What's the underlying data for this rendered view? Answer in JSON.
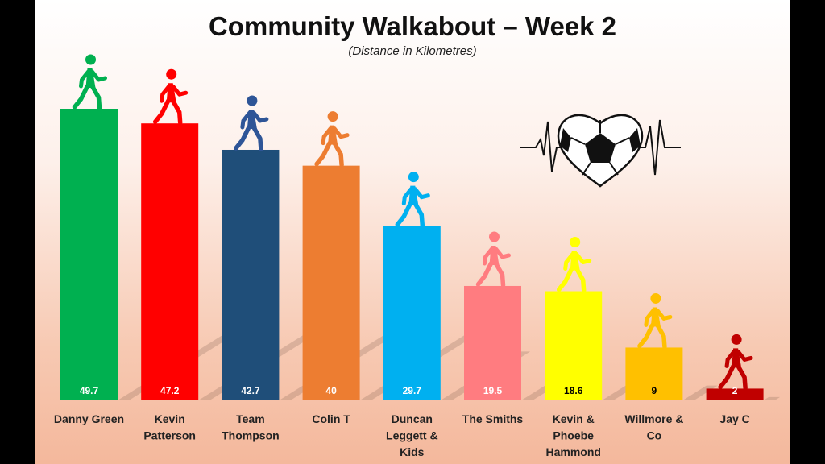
{
  "chart_data": {
    "type": "bar",
    "title": "Community Walkabout – Week 2",
    "subtitle": "(Distance in Kilometres)",
    "categories": [
      [
        "Danny Green"
      ],
      [
        "Kevin",
        "Patterson"
      ],
      [
        "Team",
        "Thompson"
      ],
      [
        "Colin T"
      ],
      [
        "Duncan",
        "Leggett &",
        "Kids"
      ],
      [
        "The Smiths"
      ],
      [
        "Kevin &",
        "Phoebe",
        "Hammond"
      ],
      [
        "Willmore &",
        "Co"
      ],
      [
        "Jay C"
      ]
    ],
    "values": [
      49.7,
      47.2,
      42.7,
      40,
      29.7,
      19.5,
      18.6,
      9,
      2
    ],
    "value_labels": [
      "49.7",
      "47.2",
      "42.7",
      "40",
      "29.7",
      "19.5",
      "18.6",
      "9",
      "2"
    ],
    "colors": [
      "#00b050",
      "#ff0000",
      "#1f4e79",
      "#ed7d31",
      "#00b0f0",
      "#ff7c80",
      "#ffff00",
      "#ffc000",
      "#c00000"
    ],
    "label_colors": [
      "#ffffff",
      "#ffffff",
      "#ffffff",
      "#ffffff",
      "#ffffff",
      "#ffffff",
      "#000000",
      "#000000",
      "#ffffff"
    ],
    "figure_colors": [
      "#00b050",
      "#ff0000",
      "#2e5597",
      "#ed7d31",
      "#00b0f0",
      "#ff7c80",
      "#ffff00",
      "#ffc000",
      "#c00000"
    ],
    "ylim": [
      0,
      52
    ],
    "grid": false,
    "legend": "none",
    "decoration": "soccer-ball-heart-heartbeat-icon"
  }
}
